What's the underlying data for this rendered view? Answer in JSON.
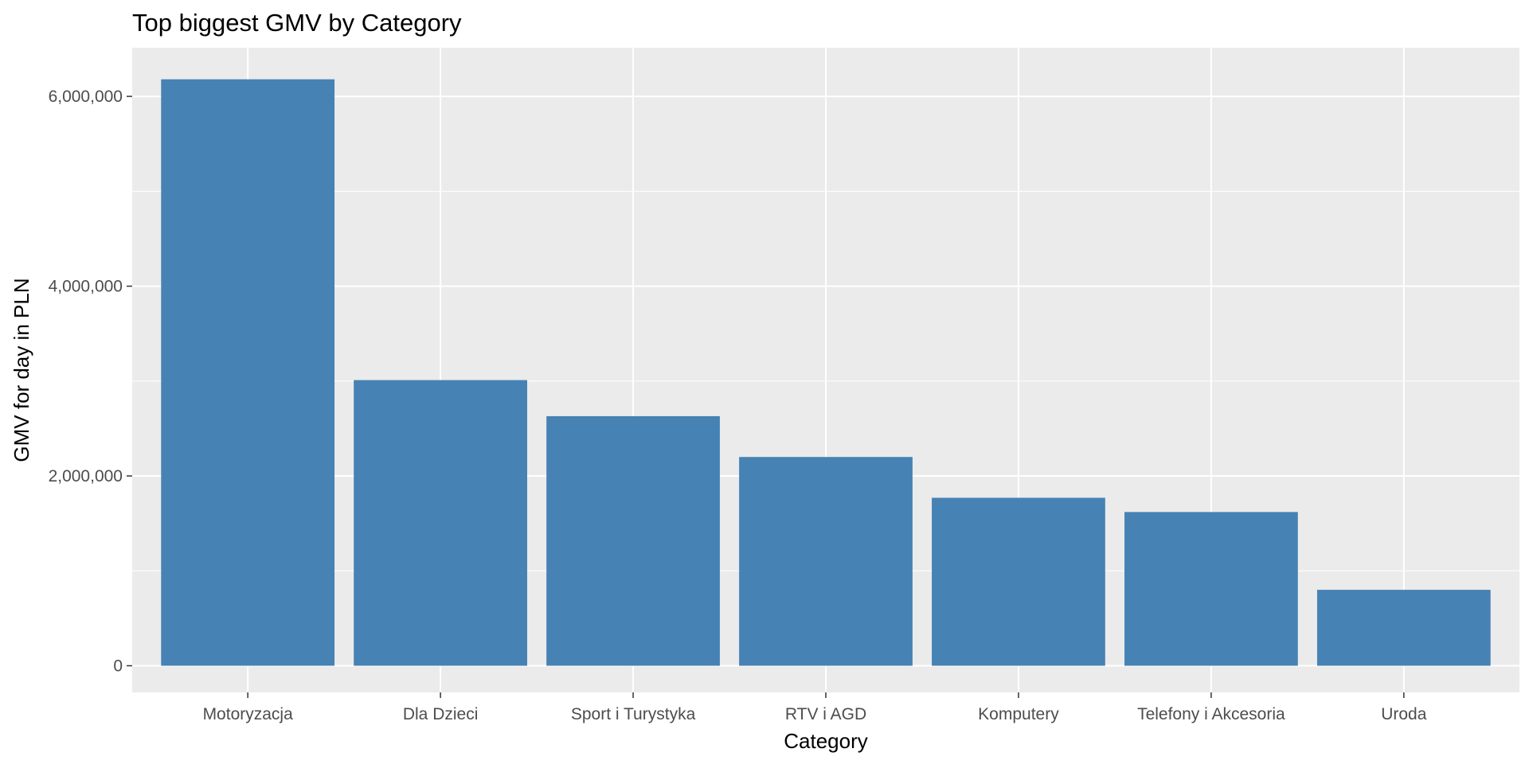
{
  "chart_data": {
    "type": "bar",
    "title": "Top biggest GMV by Category",
    "xlabel": "Category",
    "ylabel": "GMV for day in PLN",
    "categories": [
      "Motoryzacja",
      "Dla Dzieci",
      "Sport i Turystyka",
      "RTV i AGD",
      "Komputery",
      "Telefony i Akcesoria",
      "Uroda"
    ],
    "values": [
      6180000,
      3010000,
      2630000,
      2200000,
      1770000,
      1620000,
      800000
    ],
    "ylim": [
      0,
      6500000
    ],
    "yticks": [
      0,
      2000000,
      4000000,
      6000000
    ],
    "ytick_labels": [
      "0",
      "2,000,000",
      "4,000,000",
      "6,000,000"
    ],
    "y_minor_ticks": [
      1000000,
      3000000,
      5000000
    ],
    "grid": true,
    "legend": "none",
    "colors": {
      "bar": "#4682B4",
      "panel": "#EBEBEB",
      "grid": "#FFFFFF",
      "tick": "#333333"
    }
  }
}
